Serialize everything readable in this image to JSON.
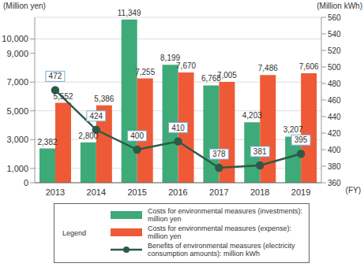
{
  "chart_data": {
    "type": "bar",
    "y_label": "(Million yen)",
    "y2_label": "(Million kWh)",
    "x_label": "(FY)",
    "legend_title": "Legend",
    "categories": [
      "2013",
      "2014",
      "2015",
      "2016",
      "2017",
      "2018",
      "2019"
    ],
    "series": [
      {
        "name": "Costs for environmental measures (investments): million yen",
        "type": "bar",
        "color": "#3daa78",
        "values": [
          2382,
          2800,
          11349,
          8199,
          6768,
          4203,
          3207
        ],
        "value_labels": [
          "2,382",
          "2,800",
          "11,349",
          "8,199",
          "6,768",
          "4,203",
          "3,207"
        ]
      },
      {
        "name": "Costs for environmental measures (expense): million yen",
        "type": "bar",
        "color": "#ef5a36",
        "values": [
          5552,
          5386,
          7255,
          7670,
          7005,
          7486,
          7606
        ],
        "value_labels": [
          "5,552",
          "5,386",
          "7,255",
          "7,670",
          "7,005",
          "7,486",
          "7,606"
        ]
      },
      {
        "name": "Benefits of environmental measures (electricity consumption amounts): million kWh",
        "type": "line",
        "axis": "y2",
        "color": "#2d5a48",
        "marker": "circle",
        "values": [
          472,
          424,
          400,
          410,
          378,
          381,
          395
        ]
      }
    ],
    "ylim": [
      0,
      11500
    ],
    "yticks": [
      0,
      {
        "value": 1000,
        "label": "1,000"
      },
      {
        "value": 3000,
        "label": "3,000"
      },
      {
        "value": 5000,
        "label": "5,000"
      },
      {
        "value": 7000,
        "label": "7,000"
      },
      {
        "value": 9000,
        "label": "9,000"
      },
      {
        "value": 10000,
        "label": "10,000"
      }
    ],
    "y2lim": [
      360,
      560
    ],
    "y2ticks": [
      360,
      380,
      400,
      420,
      440,
      460,
      480,
      500,
      520,
      540,
      560
    ],
    "grid": true,
    "data_labels": true,
    "legend": "bottom"
  }
}
